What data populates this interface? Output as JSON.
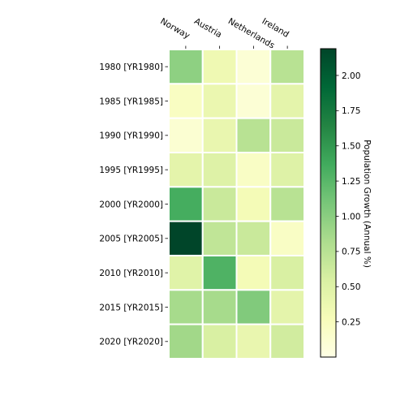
{
  "chart_data": {
    "type": "heatmap",
    "title": "",
    "x": [
      "Norway",
      "Austria",
      "Netherlands",
      "Ireland"
    ],
    "y": [
      "1980 [YR1980]",
      "1985 [YR1985]",
      "1990 [YR1990]",
      "1995 [YR1995]",
      "2000 [YR2000]",
      "2005 [YR2005]",
      "2010 [YR2010]",
      "2015 [YR2015]",
      "2020 [YR2020]"
    ],
    "values": [
      [
        0.98,
        0.35,
        0.1,
        0.75
      ],
      [
        0.22,
        0.38,
        0.1,
        0.45
      ],
      [
        0.12,
        0.4,
        0.75,
        0.65
      ],
      [
        0.45,
        0.5,
        0.2,
        0.5
      ],
      [
        1.35,
        0.65,
        0.3,
        0.75
      ],
      [
        2.19,
        0.7,
        0.65,
        0.2
      ],
      [
        0.48,
        1.3,
        0.3,
        0.55
      ],
      [
        0.85,
        0.85,
        1.05,
        0.45
      ],
      [
        0.88,
        0.55,
        0.4,
        0.6
      ]
    ],
    "colorbar": {
      "label": "Population Growth (Annual %)",
      "ticks": [
        0.25,
        0.5,
        0.75,
        1.0,
        1.25,
        1.5,
        1.75,
        2.0
      ],
      "tick_labels": [
        "0.25",
        "0.50",
        "0.75",
        "1.00",
        "1.25",
        "1.50",
        "1.75",
        "2.00"
      ],
      "range": [
        0.0,
        2.19
      ]
    },
    "colormap": [
      "#ffffe5",
      "#f7fcb9",
      "#d9f0a3",
      "#addd8e",
      "#78c679",
      "#41ab5d",
      "#238443",
      "#006837",
      "#004529"
    ],
    "cell_border_color": "#ffffff",
    "grid": false
  }
}
